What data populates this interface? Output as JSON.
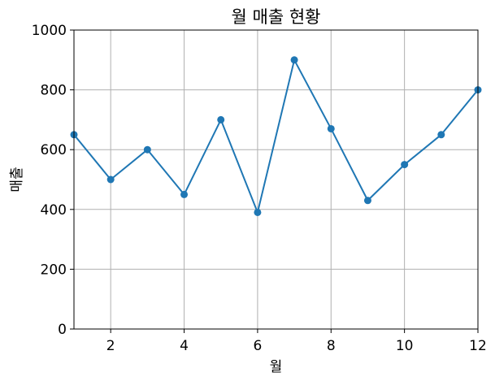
{
  "chart_data": {
    "type": "line",
    "title": "월 매출 현황",
    "xlabel": "월",
    "ylabel": "매출",
    "x": [
      1,
      2,
      3,
      4,
      5,
      6,
      7,
      8,
      9,
      10,
      11,
      12
    ],
    "series": [
      {
        "values": [
          650,
          500,
          600,
          450,
          700,
          390,
          900,
          670,
          430,
          550,
          650,
          800
        ],
        "color": "#1f77b4",
        "marker": "circle"
      }
    ],
    "xlim": [
      1,
      12
    ],
    "ylim": [
      0,
      1000
    ],
    "xticks": [
      2,
      4,
      6,
      8,
      10,
      12
    ],
    "yticks": [
      0,
      200,
      400,
      600,
      800,
      1000
    ],
    "grid": true
  }
}
